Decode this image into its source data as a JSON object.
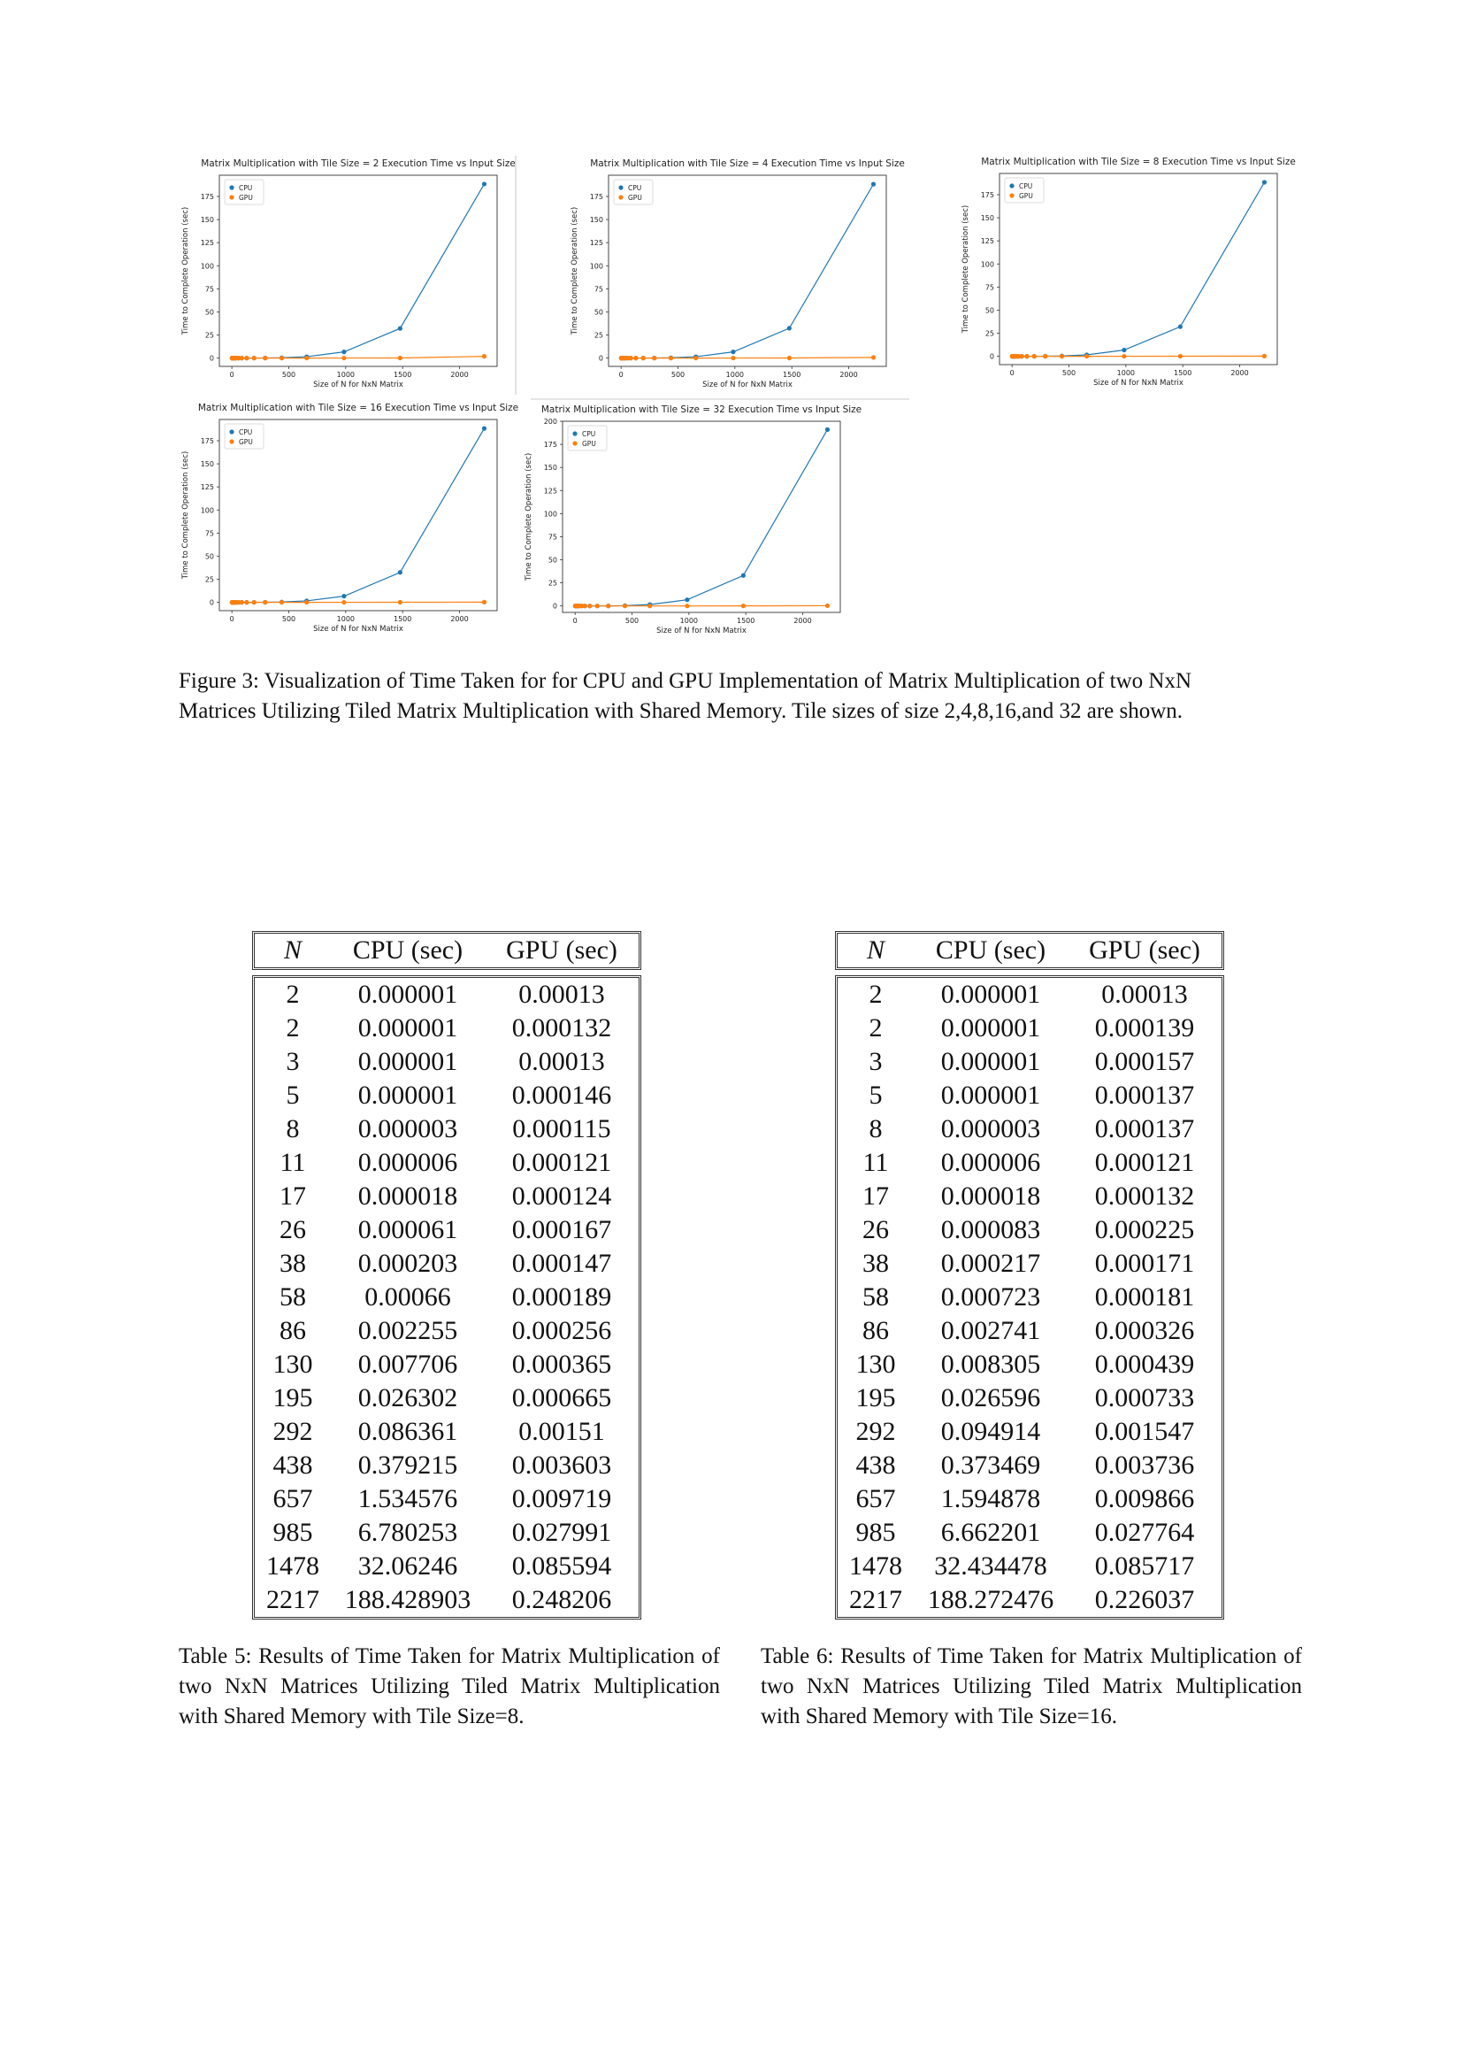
{
  "figure": {
    "caption_line1": "Figure 3: Visualization of Time Taken for for CPU and GPU Implementation of Matrix Multiplication of two NxN",
    "caption_line2": "Matrices Utilizing Tiled Matrix Multiplication with Shared Memory. Tile sizes of size 2,4,8,16,and 32 are shown."
  },
  "chart_data": [
    {
      "type": "line",
      "title": "Matrix Multiplication with Tile Size = 2 Execution Time vs Input Size",
      "xlabel": "Size of N for NxN Matrix",
      "ylabel": "Time to Complete Operation (sec)",
      "xticks": [
        "0",
        "500",
        "1000",
        "1500",
        "2000"
      ],
      "yticks": [
        "0",
        "25",
        "50",
        "75",
        "100",
        "125",
        "150",
        "175"
      ],
      "xlim": [
        -110,
        2330
      ],
      "ylim": [
        -9,
        198
      ],
      "legend": "top-left",
      "x": [
        2,
        2,
        3,
        5,
        8,
        11,
        17,
        26,
        38,
        58,
        86,
        130,
        195,
        292,
        438,
        657,
        985,
        1478,
        2217
      ],
      "series": [
        {
          "name": "CPU",
          "color": "#1f77b4",
          "values": [
            1e-06,
            1e-06,
            1e-06,
            1e-06,
            3e-06,
            6e-06,
            1.8e-05,
            6.1e-05,
            0.0002,
            0.00066,
            0.0023,
            0.0077,
            0.026,
            0.086,
            0.38,
            1.5,
            6.7,
            32.1,
            188.5
          ]
        },
        {
          "name": "GPU",
          "color": "#ff7f0e",
          "values": [
            0.00013,
            0.00013,
            0.00013,
            0.00014,
            0.00012,
            0.00012,
            0.00012,
            0.00017,
            0.00015,
            0.00019,
            0.00026,
            0.00037,
            0.00067,
            0.0015,
            0.0036,
            0.0098,
            0.028,
            0.086,
            1.9
          ]
        }
      ]
    },
    {
      "type": "line",
      "title": "Matrix Multiplication with Tile Size = 4 Execution Time vs Input Size",
      "xlabel": "Size of N for NxN Matrix",
      "ylabel": "Time to Complete Operation (sec)",
      "xticks": [
        "0",
        "500",
        "1000",
        "1500",
        "2000"
      ],
      "yticks": [
        "0",
        "25",
        "50",
        "75",
        "100",
        "125",
        "150",
        "175"
      ],
      "xlim": [
        -110,
        2330
      ],
      "ylim": [
        -9,
        198
      ],
      "legend": "top-left",
      "x": [
        2,
        2,
        3,
        5,
        8,
        11,
        17,
        26,
        38,
        58,
        86,
        130,
        195,
        292,
        438,
        657,
        985,
        1478,
        2217
      ],
      "series": [
        {
          "name": "CPU",
          "color": "#1f77b4",
          "values": [
            1e-06,
            1e-06,
            1e-06,
            1e-06,
            3e-06,
            6e-06,
            1.8e-05,
            6.1e-05,
            0.0002,
            0.00066,
            0.0023,
            0.0077,
            0.026,
            0.086,
            0.38,
            1.5,
            6.7,
            32.3,
            188.3
          ]
        },
        {
          "name": "GPU",
          "color": "#ff7f0e",
          "values": [
            0.00013,
            0.00013,
            0.00013,
            0.00014,
            0.00012,
            0.00012,
            0.00012,
            0.00017,
            0.00015,
            0.00019,
            0.00026,
            0.00037,
            0.00067,
            0.0015,
            0.0036,
            0.0098,
            0.028,
            0.086,
            0.7
          ]
        }
      ]
    },
    {
      "type": "line",
      "title": "Matrix Multiplication with Tile Size = 8 Execution Time vs Input Size",
      "xlabel": "Size of N for NxN Matrix",
      "ylabel": "Time to Complete Operation (sec)",
      "xticks": [
        "0",
        "500",
        "1000",
        "1500",
        "2000"
      ],
      "yticks": [
        "0",
        "25",
        "50",
        "75",
        "100",
        "125",
        "150",
        "175"
      ],
      "xlim": [
        -110,
        2330
      ],
      "ylim": [
        -9,
        198
      ],
      "legend": "top-left",
      "x": [
        2,
        2,
        3,
        5,
        8,
        11,
        17,
        26,
        38,
        58,
        86,
        130,
        195,
        292,
        438,
        657,
        985,
        1478,
        2217
      ],
      "series": [
        {
          "name": "CPU",
          "color": "#1f77b4",
          "values": [
            1e-06,
            1e-06,
            1e-06,
            1e-06,
            3e-06,
            6e-06,
            1.8e-05,
            6.1e-05,
            0.000203,
            0.00066,
            0.002255,
            0.007706,
            0.026302,
            0.086361,
            0.379215,
            1.534576,
            6.780253,
            32.06246,
            188.428903
          ]
        },
        {
          "name": "GPU",
          "color": "#ff7f0e",
          "values": [
            0.00013,
            0.000132,
            0.00013,
            0.000146,
            0.000115,
            0.000121,
            0.000124,
            0.000167,
            0.000147,
            0.000189,
            0.000256,
            0.000365,
            0.000665,
            0.00151,
            0.003603,
            0.009719,
            0.027991,
            0.085594,
            0.248206
          ]
        }
      ]
    },
    {
      "type": "line",
      "title": "Matrix Multiplication with Tile Size = 16 Execution Time vs Input Size",
      "xlabel": "Size of N for NxN Matrix",
      "ylabel": "Time to Complete Operation (sec)",
      "xticks": [
        "0",
        "500",
        "1000",
        "1500",
        "2000"
      ],
      "yticks": [
        "0",
        "25",
        "50",
        "75",
        "100",
        "125",
        "150",
        "175"
      ],
      "xlim": [
        -110,
        2330
      ],
      "ylim": [
        -9,
        198
      ],
      "legend": "top-left",
      "x": [
        2,
        2,
        3,
        5,
        8,
        11,
        17,
        26,
        38,
        58,
        86,
        130,
        195,
        292,
        438,
        657,
        985,
        1478,
        2217
      ],
      "series": [
        {
          "name": "CPU",
          "color": "#1f77b4",
          "values": [
            1e-06,
            1e-06,
            1e-06,
            1e-06,
            3e-06,
            6e-06,
            1.8e-05,
            8.3e-05,
            0.000217,
            0.000723,
            0.002741,
            0.008305,
            0.026596,
            0.094914,
            0.373469,
            1.594878,
            6.662201,
            32.434478,
            188.272476
          ]
        },
        {
          "name": "GPU",
          "color": "#ff7f0e",
          "values": [
            0.00013,
            0.000139,
            0.000157,
            0.000137,
            0.000137,
            0.000121,
            0.000132,
            0.000225,
            0.000171,
            0.000181,
            0.000326,
            0.000439,
            0.000733,
            0.001547,
            0.003736,
            0.009866,
            0.027764,
            0.085717,
            0.226037
          ]
        }
      ]
    },
    {
      "type": "line",
      "title": "Matrix Multiplication with Tile Size = 32 Execution Time vs Input Size",
      "xlabel": "Size of N for NxN Matrix",
      "ylabel": "Time to Complete Operation (sec)",
      "xticks": [
        "0",
        "500",
        "1000",
        "1500",
        "2000"
      ],
      "yticks": [
        "0",
        "25",
        "50",
        "75",
        "100",
        "125",
        "150",
        "175",
        "200"
      ],
      "xlim": [
        -110,
        2330
      ],
      "ylim": [
        -7,
        200
      ],
      "legend": "top-left",
      "x": [
        2,
        2,
        3,
        5,
        8,
        11,
        17,
        26,
        38,
        58,
        86,
        130,
        195,
        292,
        438,
        657,
        985,
        1478,
        2217
      ],
      "series": [
        {
          "name": "CPU",
          "color": "#1f77b4",
          "values": [
            1e-06,
            1e-06,
            1e-06,
            1e-06,
            3e-06,
            6e-06,
            1.8e-05,
            6.1e-05,
            0.0002,
            0.00066,
            0.0023,
            0.0077,
            0.026,
            0.086,
            0.38,
            1.5,
            6.7,
            33.0,
            191.0
          ]
        },
        {
          "name": "GPU",
          "color": "#ff7f0e",
          "values": [
            0.00013,
            0.00013,
            0.00013,
            0.00014,
            0.00012,
            0.00012,
            0.00012,
            0.00017,
            0.00015,
            0.00019,
            0.00026,
            0.00037,
            0.00067,
            0.0015,
            0.0036,
            0.0098,
            0.028,
            0.086,
            0.25
          ]
        }
      ]
    }
  ],
  "tables": [
    {
      "headers": [
        "N",
        "CPU (sec)",
        "GPU (sec)"
      ],
      "rows": [
        [
          "2",
          "0.000001",
          "0.00013"
        ],
        [
          "2",
          "0.000001",
          "0.000132"
        ],
        [
          "3",
          "0.000001",
          "0.00013"
        ],
        [
          "5",
          "0.000001",
          "0.000146"
        ],
        [
          "8",
          "0.000003",
          "0.000115"
        ],
        [
          "11",
          "0.000006",
          "0.000121"
        ],
        [
          "17",
          "0.000018",
          "0.000124"
        ],
        [
          "26",
          "0.000061",
          "0.000167"
        ],
        [
          "38",
          "0.000203",
          "0.000147"
        ],
        [
          "58",
          "0.00066",
          "0.000189"
        ],
        [
          "86",
          "0.002255",
          "0.000256"
        ],
        [
          "130",
          "0.007706",
          "0.000365"
        ],
        [
          "195",
          "0.026302",
          "0.000665"
        ],
        [
          "292",
          "0.086361",
          "0.00151"
        ],
        [
          "438",
          "0.379215",
          "0.003603"
        ],
        [
          "657",
          "1.534576",
          "0.009719"
        ],
        [
          "985",
          "6.780253",
          "0.027991"
        ],
        [
          "1478",
          "32.06246",
          "0.085594"
        ],
        [
          "2217",
          "188.428903",
          "0.248206"
        ]
      ],
      "caption": "Table 5: Results of Time Taken for Matrix Multiplication of two NxN Matrices Utilizing Tiled Matrix Multiplication with Shared Memory with Tile Size=8."
    },
    {
      "headers": [
        "N",
        "CPU (sec)",
        "GPU (sec)"
      ],
      "rows": [
        [
          "2",
          "0.000001",
          "0.00013"
        ],
        [
          "2",
          "0.000001",
          "0.000139"
        ],
        [
          "3",
          "0.000001",
          "0.000157"
        ],
        [
          "5",
          "0.000001",
          "0.000137"
        ],
        [
          "8",
          "0.000003",
          "0.000137"
        ],
        [
          "11",
          "0.000006",
          "0.000121"
        ],
        [
          "17",
          "0.000018",
          "0.000132"
        ],
        [
          "26",
          "0.000083",
          "0.000225"
        ],
        [
          "38",
          "0.000217",
          "0.000171"
        ],
        [
          "58",
          "0.000723",
          "0.000181"
        ],
        [
          "86",
          "0.002741",
          "0.000326"
        ],
        [
          "130",
          "0.008305",
          "0.000439"
        ],
        [
          "195",
          "0.026596",
          "0.000733"
        ],
        [
          "292",
          "0.094914",
          "0.001547"
        ],
        [
          "438",
          "0.373469",
          "0.003736"
        ],
        [
          "657",
          "1.594878",
          "0.009866"
        ],
        [
          "985",
          "6.662201",
          "0.027764"
        ],
        [
          "1478",
          "32.434478",
          "0.085717"
        ],
        [
          "2217",
          "188.272476",
          "0.226037"
        ]
      ],
      "caption": "Table 6: Results of Time Taken for Matrix Multiplication of two NxN Matrices Utilizing Tiled Matrix Multiplication with Shared Memory with Tile Size=16."
    }
  ]
}
